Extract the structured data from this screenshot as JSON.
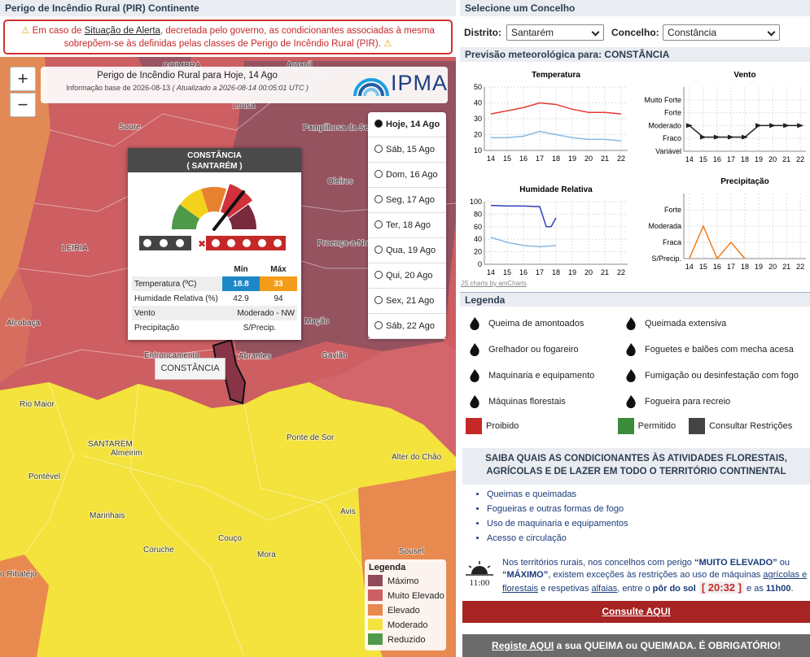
{
  "header": {
    "title": "Perigo de Incêndio Rural (PIR) Continente"
  },
  "alert": {
    "prefix": "Em caso de ",
    "link": "Situação de Alerta",
    "suffix": ", decretada pelo governo, as condicionantes associadas à mesma sobrepõem-se às definidas pelas classes de Perigo de Incêndio Rural (PIR)."
  },
  "map": {
    "title": "Perigo de Incêndio Rural para Hoje, 14 Ago",
    "base_info": "Informação base de 2026-08-13",
    "updated": "( Atualizado a 2026-08-14 00:05:01 UTC )",
    "logo": "IPMA",
    "zoom_in": "+",
    "zoom_out": "−",
    "days": [
      "Hoje, 14 Ago",
      "Sáb, 15 Ago",
      "Dom, 16 Ago",
      "Seg, 17 Ago",
      "Ter, 18 Ago",
      "Qua, 19 Ago",
      "Qui, 20 Ago",
      "Sex, 21 Ago",
      "Sáb, 22 Ago"
    ],
    "places": [
      "COIMBRA",
      "Arganil",
      "Lousã",
      "Soure",
      "Pampilhosa da Serra",
      "Oleiros",
      "LEIRIA",
      "Proença-a-Nova",
      "Alcobaça",
      "Mação",
      "Entroncamento",
      "Abrantes",
      "Gavião",
      "Rio Maior",
      "Ponte de Sor",
      "SANTARÉM",
      "Almeirim",
      "Alter do Chão",
      "Pontével",
      "Marinhais",
      "Avis",
      "Coruche",
      "Couço",
      "Mora",
      "Sousel",
      "o Ribatejo"
    ],
    "tooltip": "CONSTÂNCIA",
    "legend": {
      "title": "Legenda",
      "items": [
        {
          "label": "Máximo",
          "color": "#8f4b5b"
        },
        {
          "label": "Muito Elevado",
          "color": "#cd5e62"
        },
        {
          "label": "Elevado",
          "color": "#e8894f"
        },
        {
          "label": "Moderado",
          "color": "#f3e33c"
        },
        {
          "label": "Reduzido",
          "color": "#4f9a4a"
        }
      ]
    }
  },
  "popup": {
    "title": "CONSTÂNCIA",
    "subtitle": "( SANTARÉM )",
    "col_min": "Mín",
    "col_max": "Máx",
    "rows": [
      {
        "label": "Temperatura (ºC)",
        "min": 18.8,
        "max": 33
      },
      {
        "label": "Humidade Relativa (%)",
        "min": 42.9,
        "max": 94
      },
      {
        "label": "Vento",
        "value": "Moderado - NW"
      },
      {
        "label": "Precipitação",
        "value": "S/Precip."
      }
    ]
  },
  "selector": {
    "title": "Selecione um Concelho",
    "district_label": "Distrito:",
    "district": "Santarém",
    "municipality_label": "Concelho:",
    "municipality": "Constância"
  },
  "forecast": {
    "title": "Previsão meteorológica para: CONSTÂNCIA",
    "credit": "JS charts by amCharts",
    "charts": [
      {
        "type": "line",
        "title": "Temperatura",
        "xlim": [
          13.6,
          22.4
        ],
        "xticks": [
          14,
          15,
          16,
          17,
          18,
          19,
          20,
          21,
          22
        ],
        "ylim": [
          10,
          50
        ],
        "yticks": [
          10,
          20,
          30,
          40,
          50
        ],
        "grid": true,
        "series": [
          {
            "color": "#e53935",
            "x": [
              14,
              15,
              16,
              17,
              18,
              19,
              20,
              21,
              22
            ],
            "values": [
              33,
              35,
              37,
              40,
              39,
              36,
              34,
              34,
              33
            ]
          },
          {
            "color": "#8ab8e0",
            "x": [
              14,
              15,
              16,
              17,
              18,
              19,
              20,
              21,
              22
            ],
            "values": [
              18,
              18,
              19,
              22,
              20,
              18,
              17,
              17,
              16
            ]
          }
        ]
      },
      {
        "type": "line",
        "title": "Vento",
        "xlim": [
          13.6,
          22.4
        ],
        "xticks": [
          14,
          15,
          16,
          17,
          18,
          19,
          20,
          21,
          22
        ],
        "ylim": [
          0,
          5
        ],
        "yticks": [
          {
            "value": 0,
            "label": "Variável"
          },
          {
            "value": 1,
            "label": "Fraco"
          },
          {
            "value": 2,
            "label": "Moderado"
          },
          {
            "value": 3,
            "label": "Forte"
          },
          {
            "value": 4,
            "label": "Muito Forte"
          }
        ],
        "grid": true,
        "series": [
          {
            "color": "#222222",
            "x": [
              14,
              15,
              16,
              17,
              18,
              19,
              20,
              21,
              22
            ],
            "values": [
              2,
              1.1,
              1.1,
              1.1,
              1.1,
              2,
              2,
              2,
              2
            ]
          }
        ]
      },
      {
        "type": "line",
        "title": "Humidade Relativa",
        "xlim": [
          13.6,
          22.4
        ],
        "xticks": [
          14,
          15,
          16,
          17,
          18,
          19,
          20,
          21,
          22
        ],
        "ylim": [
          0,
          100
        ],
        "yticks": [
          0,
          20,
          40,
          60,
          80,
          100
        ],
        "grid": true,
        "series": [
          {
            "color": "#2b3fb8",
            "x": [
              14,
              15,
              16,
              17,
              17.4,
              17.7,
              18
            ],
            "values": [
              94,
              93,
              93,
              92,
              60,
              60,
              74
            ]
          },
          {
            "color": "#8ab8e0",
            "x": [
              14,
              15,
              16,
              17,
              18
            ],
            "values": [
              43,
              35,
              30,
              28,
              30
            ]
          }
        ]
      },
      {
        "type": "line",
        "title": "Precipitação",
        "xlim": [
          13.6,
          22.4
        ],
        "xticks": [
          14,
          15,
          16,
          17,
          18,
          19,
          20,
          21,
          22
        ],
        "ylim": [
          0,
          4
        ],
        "yticks": [
          {
            "value": 0,
            "label": "S/Precip."
          },
          {
            "value": 1,
            "label": "Fraca"
          },
          {
            "value": 2,
            "label": "Moderada"
          },
          {
            "value": 3,
            "label": "Forte"
          }
        ],
        "grid": true,
        "series": [
          {
            "color": "#f07c1c",
            "x": [
              14,
              15,
              16,
              17,
              18
            ],
            "values": [
              0,
              2,
              0,
              1,
              0
            ]
          }
        ]
      }
    ]
  },
  "legend": {
    "title": "Legenda",
    "items": [
      "Queima de amontoados",
      "Queimada extensiva",
      "Grelhador ou fogareiro",
      "Foguetes e balões com mecha acesa",
      "Maquinaria e equipamento",
      "Fumigação ou desinfestação com fogo",
      "Máquinas florestais",
      "Fogueira para recreio"
    ],
    "status": [
      {
        "label": "Proibido",
        "color": "#c62828"
      },
      {
        "label": "Permitido",
        "color": "#3b8b3b"
      },
      {
        "label": "Consultar Restrições",
        "color": "#444444"
      }
    ]
  },
  "info": {
    "title": "SAIBA QUAIS AS CONDICIONANTES ÀS ATIVIDADES FLORESTAIS, AGRÍCOLAS E DE LAZER EM TODO O TERRITÓRIO CONTINENTAL",
    "bullets": [
      "Queimas e queimadas",
      "Fogueiras e outras formas de fogo",
      "Uso de maquinaria e equipamentos",
      "Acesso e circulação"
    ],
    "icon_time": "11:00",
    "note": [
      "Nos territórios rurais, nos concelhos com perigo ",
      "“MUITO ELEVADO”",
      " ou ",
      "“MÁXIMO”",
      ", existem exceções às restrições ao uso de máquinas ",
      "agrícolas e florestais",
      " e respetivas ",
      "alfaias",
      ", entre o ",
      "pôr do sol",
      "[ 20:32 ]",
      " e as ",
      "11h00",
      "."
    ],
    "button": "Consulte AQUI",
    "register_link": "Registe AQUI",
    "register_text": " a sua QUEIMA ou QUEIMADA. É OBRIGATÓRIO!"
  }
}
